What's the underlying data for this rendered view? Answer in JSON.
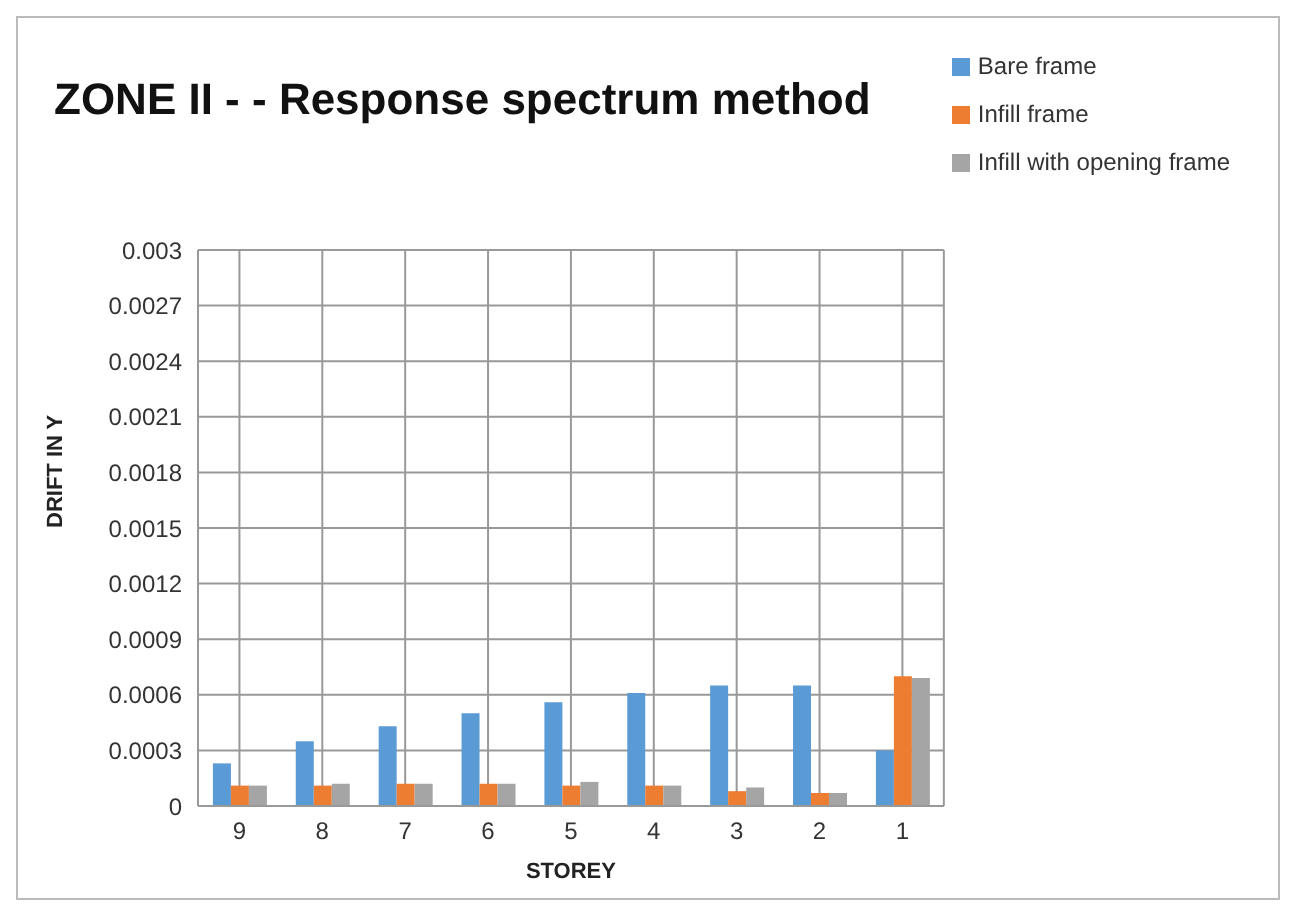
{
  "chart_data": {
    "type": "bar",
    "title": "ZONE II - - Response spectrum method",
    "xlabel": "STOREY",
    "ylabel": "DRIFT IN Y",
    "categories": [
      "9",
      "8",
      "7",
      "6",
      "5",
      "4",
      "3",
      "2",
      "1"
    ],
    "series": [
      {
        "name": "Bare frame",
        "color": "#5b9bd5",
        "values": [
          0.00023,
          0.00035,
          0.00043,
          0.0005,
          0.00056,
          0.00061,
          0.00065,
          0.00065,
          0.0003
        ]
      },
      {
        "name": "Infill frame",
        "color": "#ed7d31",
        "values": [
          0.00011,
          0.00011,
          0.00012,
          0.00012,
          0.00011,
          0.00011,
          8e-05,
          7e-05,
          0.0007
        ]
      },
      {
        "name": "Infill with opening frame",
        "color": "#a5a5a5",
        "values": [
          0.00011,
          0.00012,
          0.00012,
          0.00012,
          0.00013,
          0.00011,
          0.0001,
          7e-05,
          0.00069
        ]
      }
    ],
    "ylim": [
      0,
      0.003
    ],
    "yticks": [
      0,
      0.0003,
      0.0006,
      0.0009,
      0.0012,
      0.0015,
      0.0018,
      0.0021,
      0.0024,
      0.0027,
      0.003
    ],
    "grid": true,
    "legend": "top right"
  }
}
